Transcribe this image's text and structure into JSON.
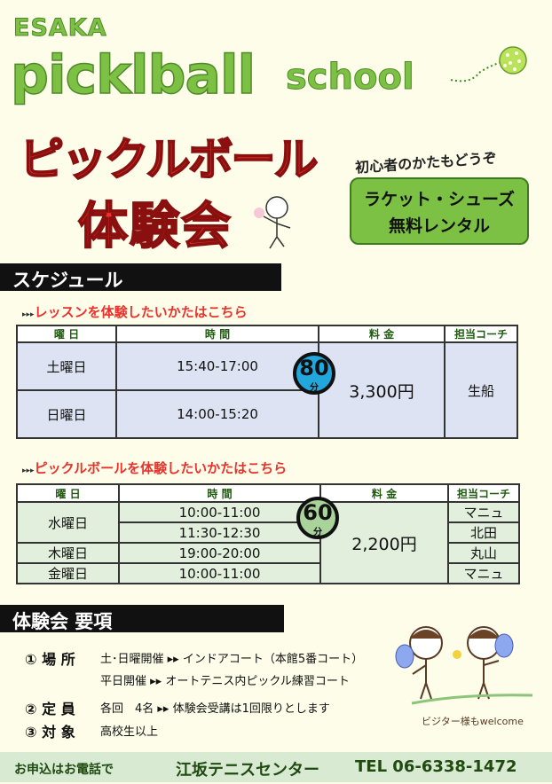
{
  "header": {
    "brand_top": "ESAKA",
    "brand_main": "picklball",
    "brand_sub": "school",
    "title_line1": "ピックルボール",
    "title_line2": "体験会",
    "beginner_note": "初心者のかたもどうぞ",
    "rental_line1": "ラケット・シューズ",
    "rental_line2": "無料レンタル"
  },
  "schedule": {
    "section_title": "スケジュール",
    "columns": [
      "曜 日",
      "時 間",
      "料 金",
      "担当コーチ"
    ],
    "lesson": {
      "subtitle": "レッスンを体験したいかたはこちら",
      "duration": "80",
      "duration_unit": "分",
      "price": "3,300円",
      "coach": "生船",
      "rows": [
        {
          "day": "土曜日",
          "time": "15:40-17:00"
        },
        {
          "day": "日曜日",
          "time": "14:00-15:20"
        }
      ]
    },
    "pickleball": {
      "subtitle": "ピックルボールを体験したいかたはこちら",
      "duration": "60",
      "duration_unit": "分",
      "price": "2,200円",
      "rows": [
        {
          "day": "水曜日",
          "time": "10:00-11:00",
          "coach": "マニュ"
        },
        {
          "time": "11:30-12:30",
          "coach": "北田"
        },
        {
          "day": "木曜日",
          "time": "19:00-20:00",
          "coach": "丸山"
        },
        {
          "day": "金曜日",
          "time": "10:00-11:00",
          "coach": "マニュ"
        }
      ]
    }
  },
  "requirements": {
    "section_title": "体験会 要項",
    "items": [
      {
        "label": "① 場 所",
        "lines": [
          "土･日曜開催 ▸▸ インドアコート（本館5番コート）",
          "平日開催 ▸▸ オートテニス内ピックル練習コート"
        ]
      },
      {
        "label": "② 定 員",
        "lines": [
          "各回　4名 ▸▸ 体験会受講は1回限りとします"
        ]
      },
      {
        "label": "③ 対 象",
        "lines": [
          "高校生以上"
        ]
      }
    ],
    "visitor_note": "ビジター様もwelcome"
  },
  "footer": {
    "apply": "お申込はお電話で",
    "center": "江坂テニスセンター",
    "tel": "TEL 06-6338-1472"
  },
  "colors": {
    "brand_green": "#7cc144",
    "title_red": "#e8322b",
    "lesson_cell": "#dde3f2",
    "pickle_cell": "#e1efdc",
    "lesson_circle": "#22a7dc",
    "pickle_circle": "#a9d39a"
  }
}
